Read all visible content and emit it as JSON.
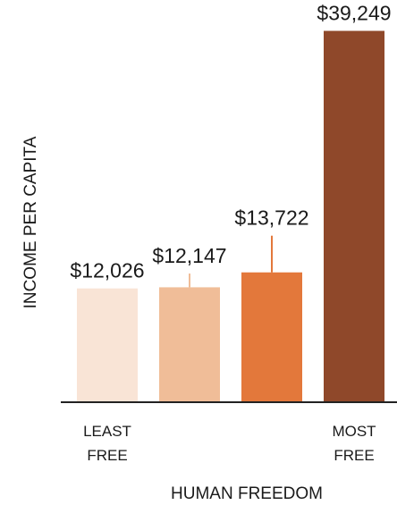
{
  "chart_data": {
    "type": "bar",
    "xlabel": "HUMAN FREEDOM",
    "ylabel": "INCOME PER CAPITA",
    "categories": [
      [
        "LEAST",
        "FREE"
      ],
      [
        "",
        ""
      ],
      [
        "",
        ""
      ],
      [
        "MOST",
        "FREE"
      ]
    ],
    "values": [
      12026,
      12147,
      13722,
      39249
    ],
    "value_labels": [
      "$12,026",
      "$12,147",
      "$13,722",
      "$39,249"
    ],
    "error_upper": [
      12026,
      13600,
      17600,
      39249
    ],
    "colors": [
      "#f9e4d6",
      "#f0bd98",
      "#e3783b",
      "#8f482a"
    ],
    "ylim": [
      0,
      41000
    ],
    "grid": false
  }
}
